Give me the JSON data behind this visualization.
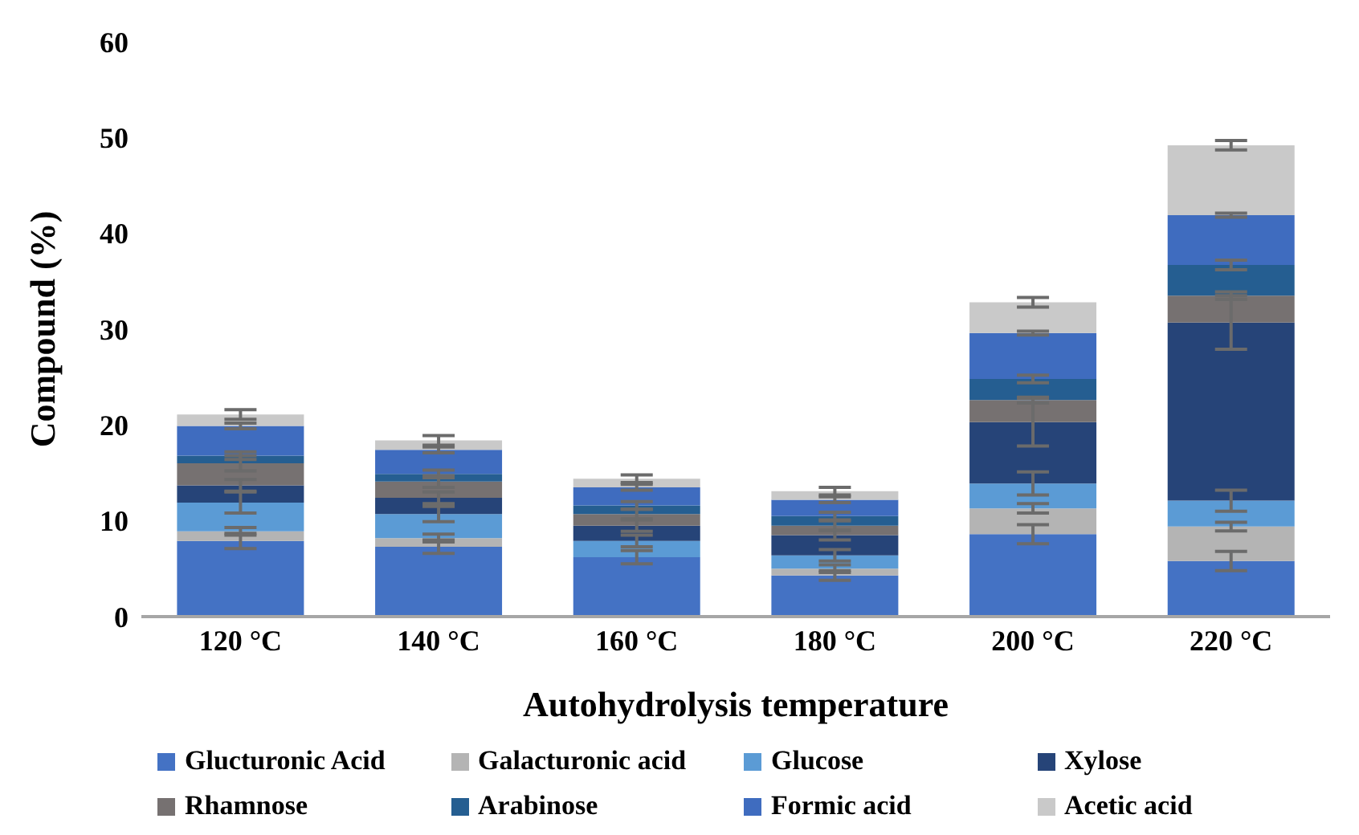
{
  "chart_data": {
    "type": "bar",
    "stacked": true,
    "xlabel": "Autohydrolysis temperature",
    "ylabel": "Compound (%)",
    "categories": [
      "120 °C",
      "140 °C",
      "160 °C",
      "180 °C",
      "200 °C",
      "220 °C"
    ],
    "ylim": [
      0,
      60
    ],
    "yticks": [
      0,
      10,
      20,
      30,
      40,
      50,
      60
    ],
    "grid": false,
    "legend": "bottom",
    "series": [
      {
        "name": "Glucturonic Acid",
        "color": "#4472c4",
        "values": [
          7.9,
          7.3,
          6.2,
          4.3,
          8.6,
          5.8
        ],
        "errors": [
          0.8,
          0.7,
          0.7,
          0.5,
          1.0,
          1.0
        ]
      },
      {
        "name": "Galacturonic acid",
        "color": "#b4b4b4",
        "values": [
          1.0,
          0.9,
          0,
          0.7,
          2.7,
          3.6
        ],
        "errors": [
          0.4,
          0.4,
          0.3,
          0.4,
          0.5,
          0.45
        ]
      },
      {
        "name": "Glucose",
        "color": "#5b9bd5",
        "values": [
          3.0,
          2.5,
          1.7,
          1.4,
          2.6,
          2.7
        ],
        "errors": [
          1.1,
          0.8,
          0.6,
          0.6,
          1.2,
          1.1
        ]
      },
      {
        "name": "Xylose",
        "color": "#264478",
        "values": [
          1.8,
          1.7,
          1.6,
          2.1,
          6.4,
          18.6
        ],
        "errors": [
          0.6,
          0.6,
          0.6,
          0.5,
          2.5,
          2.8
        ]
      },
      {
        "name": "Rhamnose",
        "color": "#767171",
        "values": [
          2.3,
          1.7,
          1.2,
          1.0,
          2.3,
          2.8
        ],
        "errors": [
          0.8,
          0.6,
          0.5,
          0.5,
          0.3,
          0.4
        ]
      },
      {
        "name": "Arabinose",
        "color": "#255e91",
        "values": [
          0.8,
          0.8,
          0.9,
          1.0,
          2.2,
          3.2
        ],
        "errors": [
          0.4,
          0.4,
          0.4,
          0.4,
          0.4,
          0.5
        ]
      },
      {
        "name": "Formic acid",
        "color": "#3f6cbf",
        "values": [
          3.1,
          2.5,
          1.9,
          1.7,
          4.8,
          5.2
        ],
        "errors": [
          0.3,
          0.3,
          0.3,
          0.3,
          0.2,
          0.2
        ]
      },
      {
        "name": "Acetic acid",
        "color": "#c9c9c9",
        "values": [
          1.2,
          1.0,
          0.9,
          0.9,
          3.2,
          7.3
        ],
        "errors": [
          0.5,
          0.5,
          0.4,
          0.4,
          0.5,
          0.5
        ]
      }
    ]
  }
}
